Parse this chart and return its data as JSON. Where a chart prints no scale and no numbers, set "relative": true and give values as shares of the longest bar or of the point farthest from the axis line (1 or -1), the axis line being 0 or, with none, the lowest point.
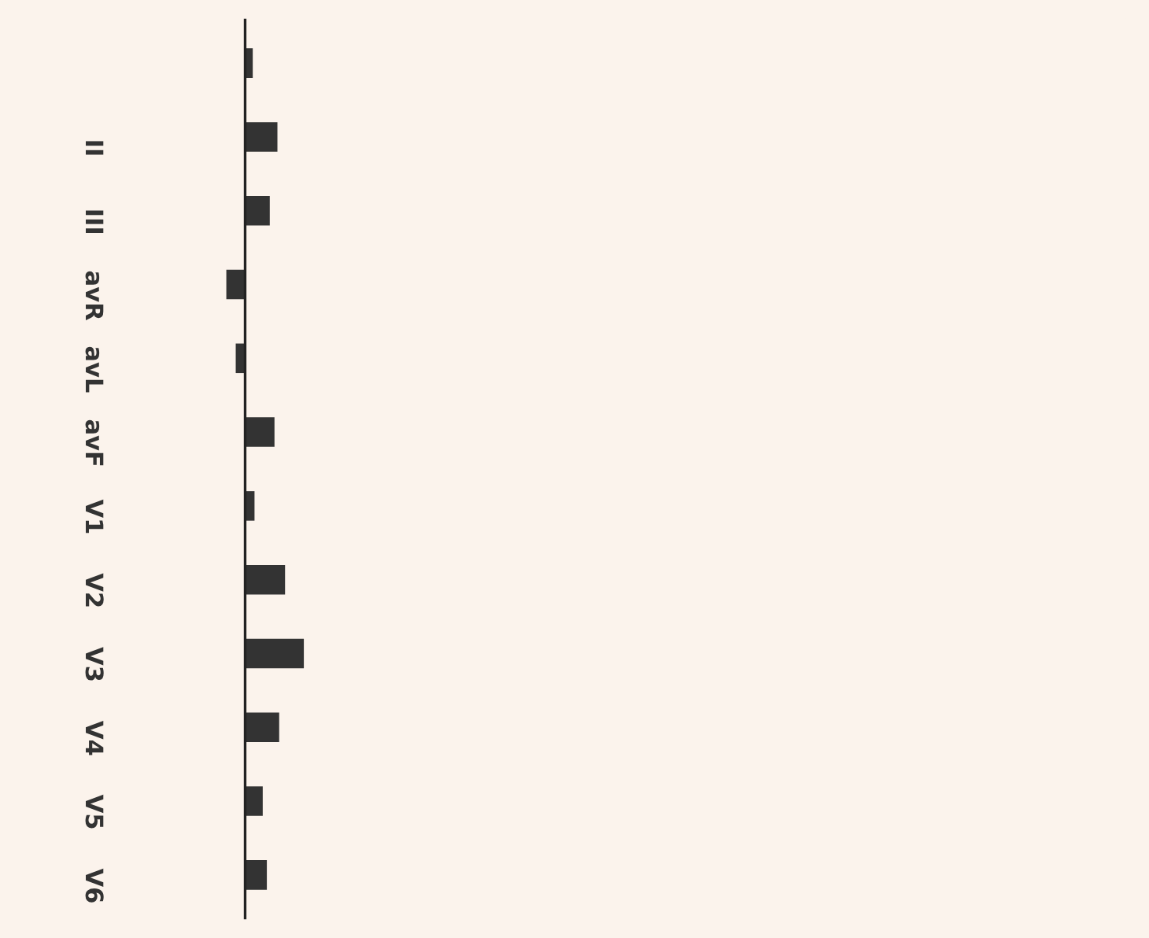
{
  "chart_data": {
    "type": "bar",
    "orientation": "horizontal",
    "relative": true,
    "categories": [
      null,
      "II",
      "III",
      "avR",
      "avL",
      "avF",
      "V1",
      "V2",
      "V3",
      "V4",
      "V5",
      "V6"
    ],
    "values": [
      0.13,
      0.55,
      0.42,
      -0.32,
      -0.16,
      0.5,
      0.16,
      0.68,
      1,
      0.58,
      0.3,
      0.37
    ],
    "color": "#333333"
  }
}
